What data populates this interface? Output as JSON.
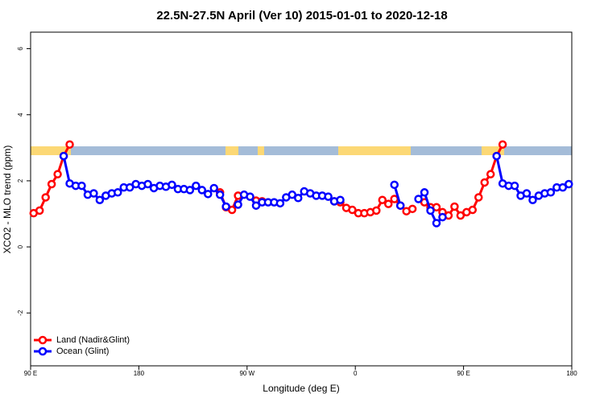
{
  "chart_data": {
    "type": "line",
    "title": "22.5N-27.5N April (Ver 10)   2015-01-01 to 2020-12-18",
    "x_label": "Longitude (deg E)",
    "y_label": "XCO2 - MLO trend (ppm)",
    "xlim": [
      90,
      540
    ],
    "xticks": [
      {
        "value": 90,
        "label": "90 E"
      },
      {
        "value": 180,
        "label": "180"
      },
      {
        "value": 270,
        "label": "90 W"
      },
      {
        "value": 360,
        "label": "0"
      },
      {
        "value": 450,
        "label": "90 E"
      },
      {
        "value": 540,
        "label": "180"
      }
    ],
    "ylim": [
      -3.6,
      6.5
    ],
    "yticks": [
      -2,
      0,
      2,
      4,
      6
    ],
    "legend": "bottom-left",
    "x": [
      92.5,
      97.5,
      102.5,
      107.5,
      112.5,
      117.5,
      122.5,
      127.5,
      132.5,
      137.5,
      142.5,
      147.5,
      152.5,
      157.5,
      162.5,
      167.5,
      172.5,
      177.5,
      182.5,
      187.5,
      192.5,
      197.5,
      202.5,
      207.5,
      212.5,
      217.5,
      222.5,
      227.5,
      232.5,
      237.5,
      242.5,
      247.5,
      252.5,
      257.5,
      262.5,
      267.5,
      272.5,
      277.5,
      282.5,
      287.5,
      292.5,
      297.5,
      302.5,
      307.5,
      312.5,
      317.5,
      322.5,
      327.5,
      332.5,
      337.5,
      342.5,
      347.5,
      352.5,
      357.5,
      362.5,
      367.5,
      372.5,
      377.5,
      382.5,
      387.5,
      392.5,
      397.5,
      402.5,
      407.5,
      412.5,
      417.5,
      422.5,
      427.5,
      432.5,
      437.5,
      442.5,
      447.5,
      452.5,
      457.5,
      462.5,
      467.5,
      472.5,
      477.5,
      482.5,
      487.5,
      492.5,
      497.5,
      502.5,
      507.5,
      512.5,
      517.5,
      522.5,
      527.5,
      532.5,
      537.5
    ],
    "series": [
      {
        "name": "Land (Nadir&Glint)",
        "color": "#ff0000",
        "values": [
          1.02,
          1.1,
          1.5,
          1.9,
          2.2,
          2.75,
          3.1,
          null,
          null,
          null,
          null,
          null,
          null,
          null,
          null,
          null,
          null,
          null,
          null,
          null,
          null,
          null,
          null,
          null,
          null,
          null,
          null,
          null,
          null,
          null,
          null,
          1.65,
          1.2,
          1.12,
          1.55,
          null,
          null,
          1.4,
          1.38,
          null,
          null,
          null,
          null,
          null,
          null,
          null,
          null,
          null,
          null,
          null,
          1.38,
          1.35,
          1.18,
          1.12,
          1.02,
          1.02,
          1.05,
          1.1,
          1.42,
          1.3,
          1.45,
          1.25,
          1.08,
          1.15,
          null,
          1.35,
          1.2,
          1.2,
          1.05,
          0.95,
          1.22,
          0.95,
          1.05,
          1.12,
          1.5,
          1.95,
          2.2,
          2.75,
          3.1,
          null,
          null,
          null,
          null,
          null,
          null,
          null,
          null,
          null,
          null,
          null
        ]
      },
      {
        "name": "Ocean (Glint)",
        "color": "#0000ff",
        "values": [
          null,
          null,
          null,
          null,
          null,
          2.75,
          1.92,
          1.85,
          1.85,
          1.58,
          1.62,
          1.42,
          1.55,
          1.62,
          1.65,
          1.8,
          1.8,
          1.9,
          1.85,
          1.9,
          1.78,
          1.85,
          1.82,
          1.88,
          1.75,
          1.75,
          1.72,
          1.85,
          1.72,
          1.6,
          1.78,
          1.58,
          1.22,
          null,
          1.28,
          1.58,
          1.52,
          1.25,
          1.35,
          1.35,
          1.35,
          1.32,
          1.5,
          1.58,
          1.48,
          1.68,
          1.62,
          1.55,
          1.55,
          1.52,
          1.38,
          1.42,
          null,
          null,
          null,
          null,
          null,
          null,
          null,
          null,
          1.88,
          1.25,
          null,
          null,
          1.45,
          1.65,
          1.1,
          0.72,
          0.9,
          null,
          null,
          null,
          null,
          null,
          null,
          null,
          null,
          2.75,
          1.92,
          1.85,
          1.85,
          1.55,
          1.62,
          1.42,
          1.55,
          1.62,
          1.65,
          1.8,
          1.8,
          1.9
        ]
      }
    ]
  }
}
